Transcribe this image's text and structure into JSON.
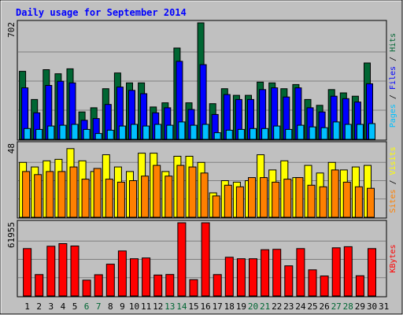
{
  "chart_data": {
    "type": "bar",
    "title": "Daily usage for September 2014",
    "categories": [
      "1",
      "2",
      "3",
      "4",
      "5",
      "6",
      "7",
      "8",
      "9",
      "10",
      "11",
      "12",
      "13",
      "14",
      "15",
      "16",
      "17",
      "18",
      "19",
      "20",
      "21",
      "22",
      "23",
      "24",
      "25",
      "26",
      "27",
      "28",
      "29",
      "30",
      "31"
    ],
    "weekend_days": [
      "6",
      "7",
      "13",
      "14",
      "20",
      "21",
      "27",
      "28"
    ],
    "colors": {
      "background": "#c0c0c0",
      "title": "#0000ff",
      "hits": "#006633",
      "files": "#0000ff",
      "pages": "#00c0ff",
      "visits": "#ffff00",
      "sites": "#ff8000",
      "kbytes": "#ff0000",
      "weekend_label": "#006633",
      "weekday_label": "#000000"
    },
    "panels": [
      {
        "name": "hits-files-pages",
        "max_label": "702",
        "ylim": [
          0,
          702
        ],
        "labels": [
          {
            "text": "Pages",
            "color": "#00c0ff"
          },
          {
            "text": " / ",
            "color": "#000000"
          },
          {
            "text": "Files",
            "color": "#0000ff"
          },
          {
            "text": " / ",
            "color": "#000000"
          },
          {
            "text": "Hits",
            "color": "#006633"
          }
        ],
        "series": [
          {
            "name": "Hits",
            "color": "#006633",
            "values": [
              410,
              240,
              420,
              395,
              425,
              165,
              190,
              305,
              400,
              340,
              340,
              195,
              220,
              550,
              220,
              702,
              215,
              305,
              265,
              265,
              345,
              340,
              305,
              330,
              240,
              205,
              300,
              280,
              260,
              460,
              0
            ]
          },
          {
            "name": "Files",
            "color": "#0000ff",
            "values": [
              310,
              160,
              325,
              350,
              340,
              115,
              125,
              210,
              315,
              295,
              275,
              160,
              190,
              470,
              180,
              450,
              150,
              270,
              240,
              240,
              300,
              310,
              255,
              310,
              190,
              165,
              260,
              245,
              225,
              335,
              0
            ]
          },
          {
            "name": "Pages",
            "color": "#00c0ff",
            "values": [
              65,
              60,
              80,
              85,
              90,
              60,
              35,
              55,
              80,
              90,
              80,
              90,
              85,
              105,
              85,
              90,
              40,
              55,
              60,
              65,
              65,
              80,
              60,
              85,
              75,
              70,
              105,
              90,
              90,
              95,
              0
            ]
          }
        ]
      },
      {
        "name": "visits-sites",
        "max_label": "48",
        "ylim": [
          0,
          48
        ],
        "labels": [
          {
            "text": "Sites",
            "color": "#ff8000"
          },
          {
            "text": " / ",
            "color": "#000000"
          },
          {
            "text": "Visits",
            "color": "#ffff00"
          }
        ],
        "series": [
          {
            "name": "Visits",
            "color": "#ffff00",
            "values": [
              36,
              33,
              37,
              38,
              45,
              37,
              30,
              41,
              33,
              30,
              42,
              42,
              30,
              40,
              40,
              36,
              16,
              24,
              23,
              24,
              41,
              31,
              37,
              26,
              34,
              29,
              36,
              31,
              33,
              34,
              0
            ]
          },
          {
            "name": "Sites",
            "color": "#ff8000",
            "values": [
              30,
              28,
              30,
              30,
              33,
              25,
              32,
              25,
              23,
              24,
              27,
              34,
              27,
              34,
              33,
              29,
              14,
              21,
              20,
              26,
              26,
              23,
              25,
              26,
              21,
              20,
              31,
              23,
              20,
              19,
              0
            ]
          }
        ]
      },
      {
        "name": "kbytes",
        "max_label": "61955",
        "ylim": [
          0,
          61955
        ],
        "labels": [
          {
            "text": "KBytes",
            "color": "#ff0000"
          }
        ],
        "series": [
          {
            "name": "KBytes",
            "color": "#ff0000",
            "values": [
              40100,
              18100,
              42100,
              44300,
              42300,
              13400,
              18000,
              26900,
              38100,
              31500,
              32200,
              17700,
              18200,
              61955,
              13800,
              61955,
              18100,
              32800,
              31500,
              31500,
              39200,
              39500,
              25500,
              40100,
              22100,
              16900,
              40800,
              41700,
              17100,
              40100,
              0
            ]
          }
        ]
      }
    ]
  }
}
